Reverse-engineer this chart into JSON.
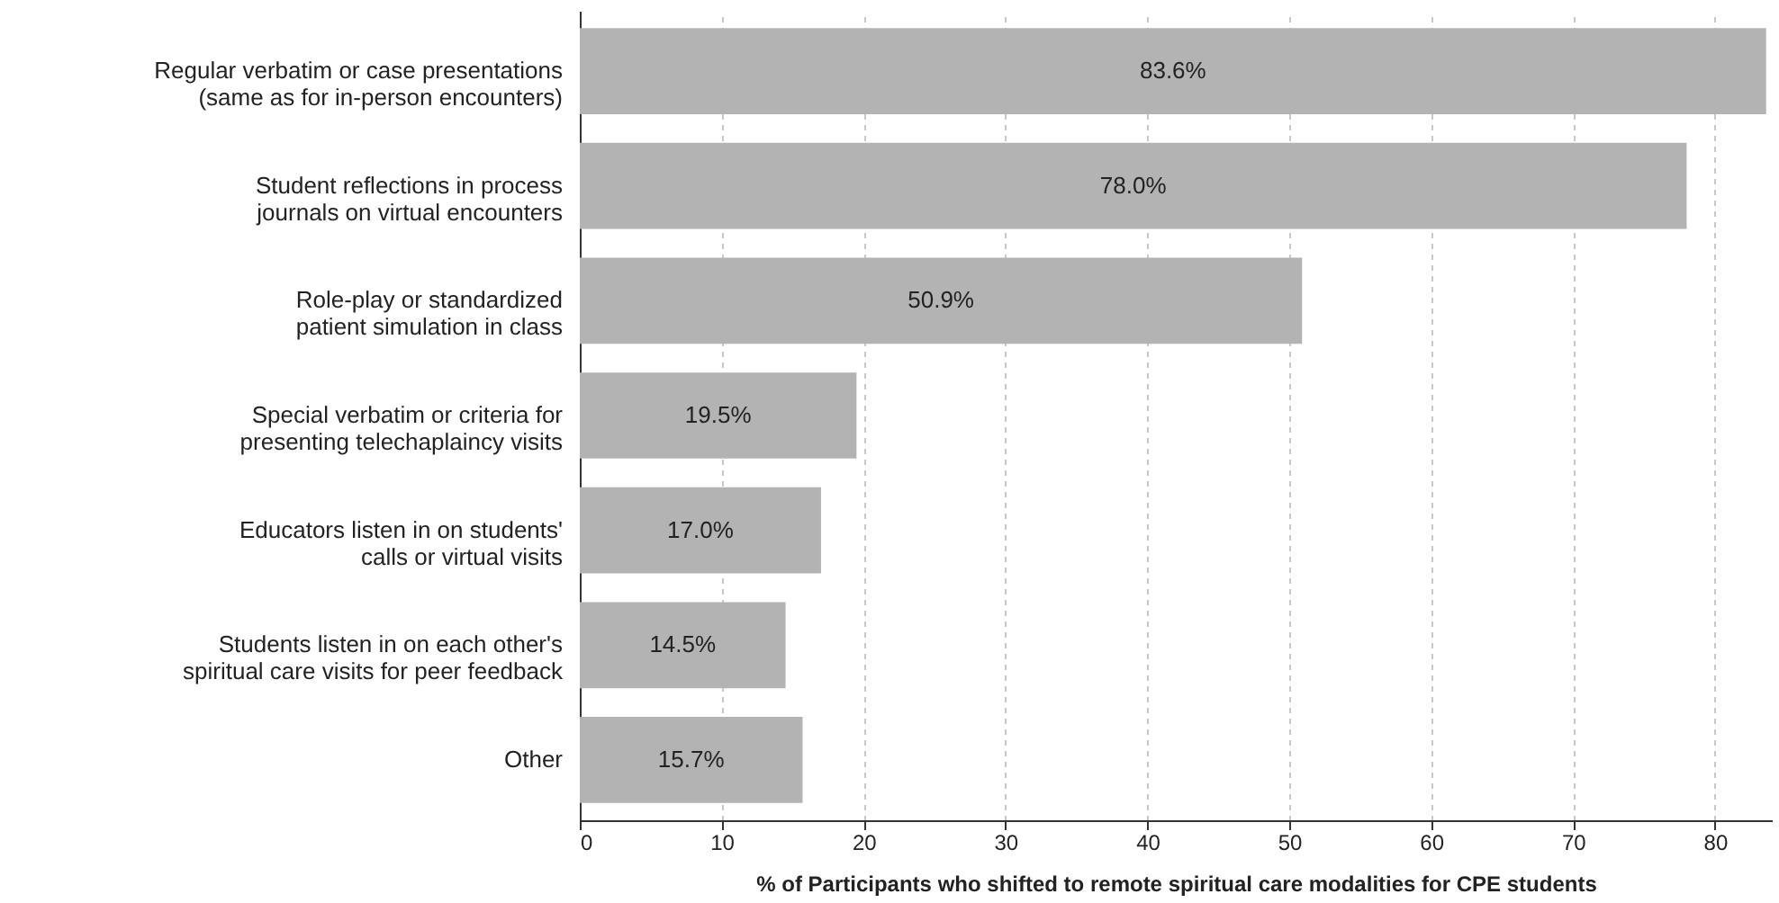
{
  "chart_data": {
    "type": "bar",
    "orientation": "horizontal",
    "xlabel": "% of Participants who shifted to remote spiritual care modalities for CPE students",
    "categories": [
      "Regular verbatim or case presentations (same as for in-person encounters)",
      "Student reflections in process journals on virtual encounters",
      "Role-play or standardized patient simulation in class",
      "Special verbatim or criteria for presenting telechaplaincy visits",
      "Educators listen in on students' calls or virtual visits",
      "Students listen in on each other's spiritual care visits for peer feedback",
      "Other"
    ],
    "values": [
      83.6,
      78.0,
      50.9,
      19.5,
      17.0,
      14.5,
      15.7
    ],
    "value_labels": [
      "83.6%",
      "78.0%",
      "50.9%",
      "19.5%",
      "17.0%",
      "14.5%",
      "15.7%"
    ],
    "color": "#b3b3b3",
    "xlim": [
      0,
      84
    ],
    "xticks": [
      0,
      10,
      20,
      30,
      40,
      50,
      60,
      70,
      80
    ],
    "grid": "x"
  }
}
